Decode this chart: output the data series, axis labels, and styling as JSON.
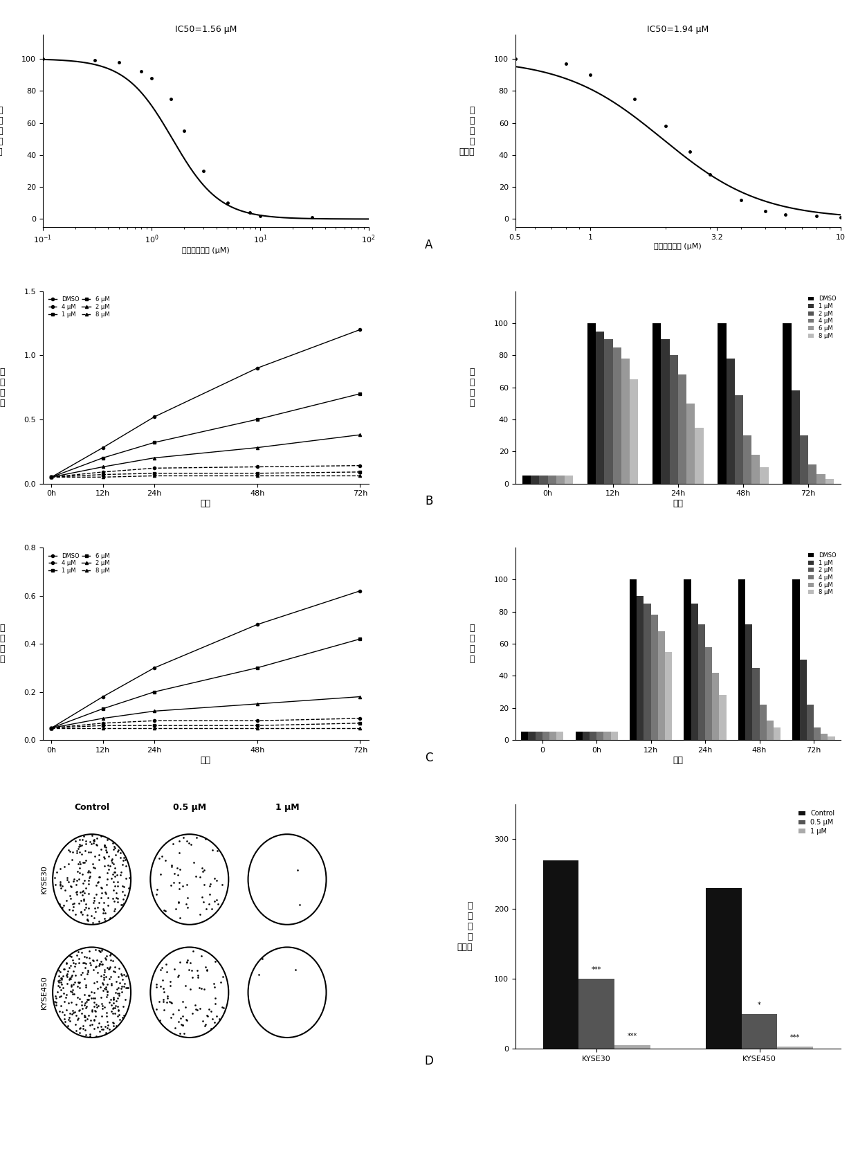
{
  "panel_A_left": {
    "title": "IC50=1.56 μM",
    "ic50": 1.56,
    "hill": 2.0,
    "xmin": 0.1,
    "xmax": 100,
    "yticks": [
      0,
      20,
      40,
      60,
      80,
      100
    ],
    "xlabel": "细捆香茱乙素 (μM)",
    "ylabel": "相\n对\n活\n性\n（％）",
    "data_x": [
      0.1,
      0.3,
      0.5,
      0.8,
      1.0,
      1.5,
      2.0,
      3.0,
      5.0,
      8.0,
      10.0,
      30.0
    ],
    "data_y": [
      100,
      99,
      98,
      92,
      88,
      75,
      55,
      30,
      10,
      4,
      2,
      1
    ]
  },
  "panel_A_right": {
    "title": "IC50=1.94 μM",
    "ic50": 1.94,
    "hill": 2.2,
    "xmin": 0.5,
    "xmax": 10,
    "xticks": [
      0.5,
      1.0,
      3.2,
      10
    ],
    "xtick_labels": [
      "0.5",
      "1",
      "3.2",
      "10"
    ],
    "yticks": [
      0,
      20,
      40,
      60,
      80,
      100
    ],
    "xlabel": "细捆香茱乙素 (μM)",
    "ylabel": "相\n对\n活\n性\n（％）",
    "data_x": [
      0.5,
      0.8,
      1.0,
      1.5,
      2.0,
      2.5,
      3.0,
      4.0,
      5.0,
      6.0,
      8.0,
      10.0
    ],
    "data_y": [
      100,
      97,
      90,
      75,
      58,
      42,
      28,
      12,
      5,
      3,
      2,
      1
    ]
  },
  "panel_B_left": {
    "xlabel": "时间",
    "ylabel": "相\n对\n活\n性",
    "x_labels": [
      "0h",
      "12h",
      "24h",
      "48h",
      "72h"
    ],
    "x_vals": [
      0,
      12,
      24,
      48,
      72
    ],
    "ylim": [
      0,
      1.5
    ],
    "yticks": [
      0.0,
      0.5,
      1.0,
      1.5
    ],
    "series": {
      "DMSO": [
        0.05,
        0.28,
        0.52,
        0.9,
        1.2
      ],
      "1 μM": [
        0.05,
        0.2,
        0.32,
        0.5,
        0.7
      ],
      "2 μM": [
        0.05,
        0.13,
        0.2,
        0.28,
        0.38
      ],
      "4 μM": [
        0.05,
        0.09,
        0.12,
        0.13,
        0.14
      ],
      "6 μM": [
        0.05,
        0.07,
        0.08,
        0.08,
        0.09
      ],
      "8 μM": [
        0.05,
        0.05,
        0.06,
        0.06,
        0.06
      ]
    },
    "legend_cols": [
      "DMSO",
      "4 μM",
      "1 μM",
      "6 μM",
      "2 μM",
      "8 μM"
    ]
  },
  "panel_B_right": {
    "xlabel": "时间",
    "ylabel": "相\n对\n活\n性",
    "x_labels": [
      "0h",
      "12h",
      "24h",
      "48h",
      "72h"
    ],
    "n_groups": 5,
    "ylim": [
      0,
      120
    ],
    "yticks": [
      0,
      20,
      40,
      60,
      80,
      100
    ],
    "legend_entries": [
      "DMSO",
      "1 μM",
      "2 μM",
      "4 μM",
      "6 μM",
      "8 μM"
    ],
    "bar_data": {
      "DMSO": [
        5,
        100,
        100,
        100,
        100
      ],
      "1 μM": [
        5,
        95,
        90,
        78,
        58
      ],
      "2 μM": [
        5,
        90,
        80,
        55,
        30
      ],
      "4 μM": [
        5,
        85,
        68,
        30,
        12
      ],
      "6 μM": [
        5,
        78,
        50,
        18,
        6
      ],
      "8 μM": [
        5,
        65,
        35,
        10,
        3
      ]
    }
  },
  "panel_C_left": {
    "xlabel": "时间",
    "ylabel": "相\n对\n活\n性",
    "x_labels": [
      "0h",
      "12h",
      "24h",
      "48h",
      "72h"
    ],
    "x_vals": [
      0,
      12,
      24,
      48,
      72
    ],
    "ylim": [
      0,
      0.8
    ],
    "yticks": [
      0.0,
      0.2,
      0.4,
      0.6,
      0.8
    ],
    "series": {
      "DMSO": [
        0.05,
        0.18,
        0.3,
        0.48,
        0.62
      ],
      "1 μM": [
        0.05,
        0.13,
        0.2,
        0.3,
        0.42
      ],
      "2 μM": [
        0.05,
        0.09,
        0.12,
        0.15,
        0.18
      ],
      "4 μM": [
        0.05,
        0.07,
        0.08,
        0.08,
        0.09
      ],
      "6 μM": [
        0.05,
        0.06,
        0.06,
        0.06,
        0.07
      ],
      "8 μM": [
        0.05,
        0.05,
        0.05,
        0.05,
        0.05
      ]
    },
    "legend_cols": [
      "DMSO",
      "4 μM",
      "1 μM",
      "6 μM",
      "2 μM",
      "8 μM"
    ]
  },
  "panel_C_right": {
    "xlabel": "时间",
    "ylabel": "相\n对\n活\n性",
    "x_labels": [
      "0",
      "0h",
      "12h",
      "24h",
      "48h",
      "72h"
    ],
    "n_groups": 6,
    "ylim": [
      0,
      120
    ],
    "yticks": [
      0,
      20,
      40,
      60,
      80,
      100
    ],
    "legend_entries": [
      "DMSO",
      "1 μM",
      "2 μM",
      "4 μM",
      "6 μM",
      "8 μM"
    ],
    "bar_data": {
      "DMSO": [
        5,
        5,
        100,
        100,
        100,
        100
      ],
      "1 μM": [
        5,
        5,
        90,
        85,
        72,
        50
      ],
      "2 μM": [
        5,
        5,
        85,
        72,
        45,
        22
      ],
      "4 μM": [
        5,
        5,
        78,
        58,
        22,
        8
      ],
      "6 μM": [
        5,
        5,
        68,
        42,
        12,
        4
      ],
      "8 μM": [
        5,
        5,
        55,
        28,
        8,
        2
      ]
    }
  },
  "panel_D_right": {
    "ylabel": "集\n落\n数\n目\n（个）",
    "groups": [
      "KYSE30",
      "KYSE450"
    ],
    "categories": [
      "Control",
      "0.5 μM",
      "1 μM"
    ],
    "values": {
      "KYSE30": [
        270,
        100,
        5
      ],
      "KYSE450": [
        230,
        50,
        3
      ]
    },
    "ylim": [
      0,
      350
    ],
    "yticks": [
      0,
      100,
      200,
      300
    ],
    "bar_colors": [
      "#111111",
      "#555555",
      "#aaaaaa"
    ],
    "sig_KYSE30": [
      "",
      "***",
      "***"
    ],
    "sig_KYSE450": [
      "",
      "*",
      "***"
    ]
  },
  "label_A": "A",
  "label_B": "B",
  "label_C": "C",
  "label_D": "D",
  "bg_color": "#ffffff"
}
